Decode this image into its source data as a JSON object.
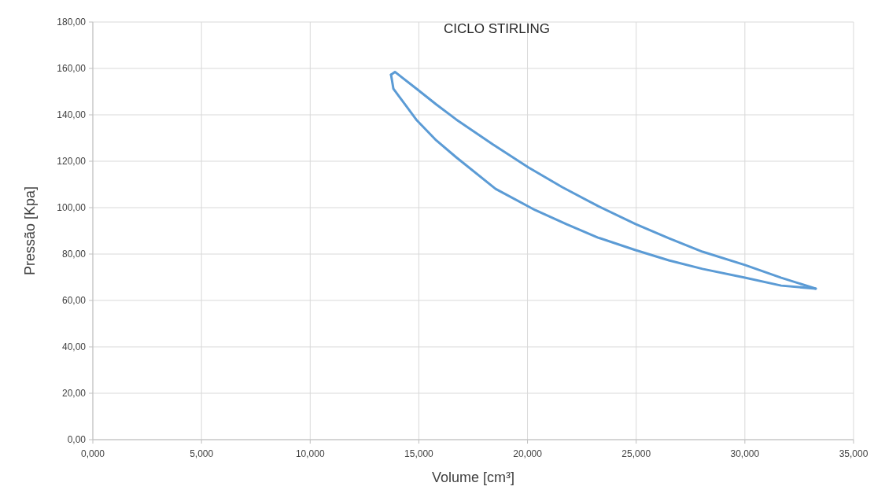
{
  "chart_data": {
    "type": "line",
    "title": "CICLO STIRLING",
    "xlabel": "Volume [cm³]",
    "ylabel": "Pressão [Kpa]",
    "xlim": [
      0,
      35
    ],
    "ylim": [
      0,
      180
    ],
    "xticks": [
      {
        "value": 0,
        "label": "0,000"
      },
      {
        "value": 5,
        "label": "5,000"
      },
      {
        "value": 10,
        "label": "10,000"
      },
      {
        "value": 15,
        "label": "15,000"
      },
      {
        "value": 20,
        "label": "20,000"
      },
      {
        "value": 25,
        "label": "25,000"
      },
      {
        "value": 30,
        "label": "30,000"
      },
      {
        "value": 35,
        "label": "35,000"
      }
    ],
    "yticks": [
      {
        "value": 0,
        "label": "0,00"
      },
      {
        "value": 20,
        "label": "20,00"
      },
      {
        "value": 40,
        "label": "40,00"
      },
      {
        "value": 60,
        "label": "60,00"
      },
      {
        "value": 80,
        "label": "80,00"
      },
      {
        "value": 100,
        "label": "100,00"
      },
      {
        "value": 120,
        "label": "120,00"
      },
      {
        "value": 140,
        "label": "140,00"
      },
      {
        "value": 160,
        "label": "160,00"
      },
      {
        "value": 180,
        "label": "180,00"
      }
    ],
    "grid": true,
    "series": [
      {
        "color": "#5b9bd5",
        "x": [
          13.72,
          13.9,
          14.9,
          15.8,
          16.72,
          18.4,
          20.05,
          21.6,
          23.24,
          24.97,
          26.5,
          28.05,
          30.0,
          31.67,
          33.26
        ],
        "values": [
          157.3,
          158.5,
          151.2,
          144.5,
          138.0,
          127.3,
          117.3,
          108.8,
          100.7,
          92.9,
          86.8,
          81.0,
          75.3,
          69.8,
          65.1
        ]
      },
      {
        "color": "#5b9bd5",
        "x": [
          13.72,
          13.83,
          14.91,
          15.8,
          16.72,
          18.53,
          20.34,
          21.8,
          23.24,
          24.97,
          26.5,
          28.05,
          30.0,
          31.67,
          33.26
        ],
        "values": [
          157.3,
          151.2,
          137.6,
          129.0,
          121.7,
          108.1,
          99.0,
          92.8,
          87.1,
          81.7,
          77.3,
          73.6,
          69.8,
          66.4,
          65.1
        ]
      }
    ]
  }
}
